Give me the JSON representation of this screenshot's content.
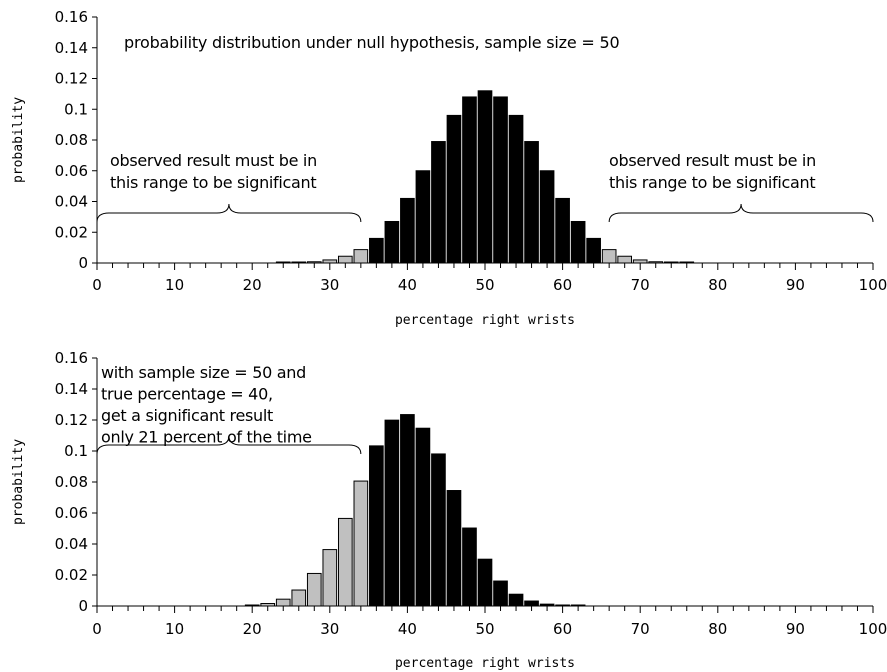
{
  "chart_data": [
    {
      "type": "bar",
      "title": "probability distribution under null hypothesis, sample size = 50",
      "xlabel": "percentage right wrists",
      "ylabel": "probability",
      "xlim": [
        0,
        100
      ],
      "ylim": [
        0,
        0.16
      ],
      "yticks": [
        "0",
        "0.02",
        "0.04",
        "0.06",
        "0.08",
        "0.1",
        "0.12",
        "0.14",
        "0.16"
      ],
      "xticks": [
        "0",
        "10",
        "20",
        "30",
        "40",
        "50",
        "60",
        "70",
        "80",
        "90",
        "100"
      ],
      "grid": false,
      "colors": {
        "significant": "#c0c0c0",
        "non_significant": "#000000"
      },
      "x": [
        0,
        2,
        4,
        6,
        8,
        10,
        12,
        14,
        16,
        18,
        20,
        22,
        24,
        26,
        28,
        30,
        32,
        34,
        36,
        38,
        40,
        42,
        44,
        46,
        48,
        50,
        52,
        54,
        56,
        58,
        60,
        62,
        64,
        66,
        68,
        70,
        72,
        74,
        76,
        78,
        80,
        82,
        84,
        86,
        88,
        90,
        92,
        94,
        96,
        98,
        100
      ],
      "values": [
        0,
        0,
        0,
        0,
        0,
        0,
        0,
        0,
        0,
        0,
        0,
        0,
        0.0001,
        0.0003,
        0.0008,
        0.002,
        0.0044,
        0.0087,
        0.016,
        0.027,
        0.042,
        0.06,
        0.079,
        0.096,
        0.108,
        0.112,
        0.108,
        0.096,
        0.079,
        0.06,
        0.042,
        0.027,
        0.016,
        0.0087,
        0.0044,
        0.002,
        0.0008,
        0.0003,
        0.0001,
        0,
        0,
        0,
        0,
        0,
        0,
        0,
        0,
        0,
        0,
        0,
        0
      ],
      "significant": [
        true,
        true,
        true,
        true,
        true,
        true,
        true,
        true,
        true,
        true,
        true,
        true,
        true,
        true,
        true,
        true,
        true,
        true,
        false,
        false,
        false,
        false,
        false,
        false,
        false,
        false,
        false,
        false,
        false,
        false,
        false,
        false,
        false,
        true,
        true,
        true,
        true,
        true,
        true,
        true,
        true,
        true,
        true,
        true,
        true,
        true,
        true,
        true,
        true,
        true,
        true
      ],
      "annotations": [
        {
          "lines": [
            "observed result must be in",
            "this range to be significant"
          ],
          "range": [
            0,
            34
          ]
        },
        {
          "lines": [
            "observed result must be in",
            "this range to be significant"
          ],
          "range": [
            66,
            100
          ]
        }
      ]
    },
    {
      "type": "bar",
      "title": "",
      "xlabel": "percentage right wrists",
      "ylabel": "probability",
      "xlim": [
        0,
        100
      ],
      "ylim": [
        0,
        0.16
      ],
      "yticks": [
        "0",
        "0.02",
        "0.04",
        "0.06",
        "0.08",
        "0.1",
        "0.12",
        "0.14",
        "0.16"
      ],
      "xticks": [
        "0",
        "10",
        "20",
        "30",
        "40",
        "50",
        "60",
        "70",
        "80",
        "90",
        "100"
      ],
      "grid": false,
      "colors": {
        "significant": "#c0c0c0",
        "non_significant": "#000000"
      },
      "x": [
        0,
        2,
        4,
        6,
        8,
        10,
        12,
        14,
        16,
        18,
        20,
        22,
        24,
        26,
        28,
        30,
        32,
        34,
        36,
        38,
        40,
        42,
        44,
        46,
        48,
        50,
        52,
        54,
        56,
        58,
        60,
        62,
        64,
        66,
        68,
        70,
        72,
        74,
        76,
        78,
        80,
        82,
        84,
        86,
        88,
        90,
        92,
        94,
        96,
        98,
        100
      ],
      "values": [
        0,
        0,
        0,
        0,
        0,
        0,
        0,
        0,
        0,
        0,
        0.0005,
        0.0016,
        0.0044,
        0.0103,
        0.021,
        0.0364,
        0.0565,
        0.0806,
        0.1033,
        0.1199,
        0.1235,
        0.1147,
        0.0981,
        0.0745,
        0.0503,
        0.0302,
        0.0161,
        0.0076,
        0.0032,
        0.0012,
        0.0004,
        0.0001,
        0,
        0,
        0,
        0,
        0,
        0,
        0,
        0,
        0,
        0,
        0,
        0,
        0,
        0,
        0,
        0,
        0,
        0,
        0
      ],
      "significant": [
        true,
        true,
        true,
        true,
        true,
        true,
        true,
        true,
        true,
        true,
        true,
        true,
        true,
        true,
        true,
        true,
        true,
        true,
        false,
        false,
        false,
        false,
        false,
        false,
        false,
        false,
        false,
        false,
        false,
        false,
        false,
        false,
        false,
        true,
        true,
        true,
        true,
        true,
        true,
        true,
        true,
        true,
        true,
        true,
        true,
        true,
        true,
        true,
        true,
        true,
        true
      ],
      "annotations": [
        {
          "lines": [
            "with sample size = 50 and",
            "true percentage = 40,",
            "get a significant result",
            "only 21 percent of the time"
          ],
          "range": [
            0,
            34
          ]
        }
      ]
    }
  ]
}
